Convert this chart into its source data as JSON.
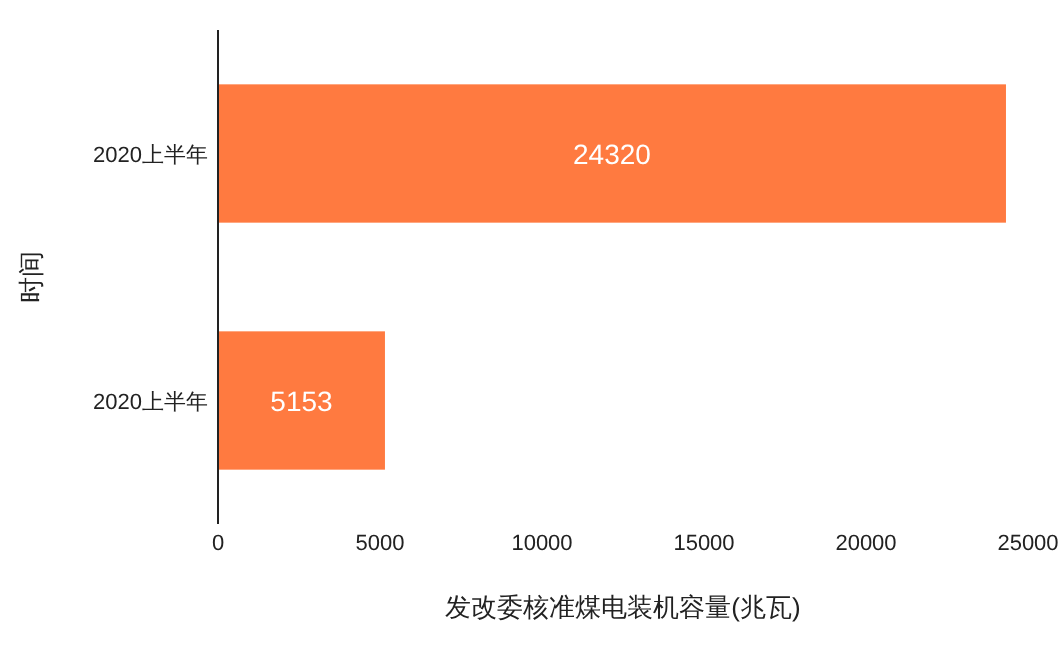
{
  "chart_data": {
    "type": "bar",
    "orientation": "horizontal",
    "categories": [
      "2020上半年",
      "2020上半年"
    ],
    "values": [
      24320,
      5153
    ],
    "color": "#ff7a40",
    "data_labels": true,
    "xlim": [
      0,
      25000
    ],
    "xticks": [
      0,
      5000,
      10000,
      15000,
      20000,
      25000
    ],
    "xlabel": "发改委核准煤电装机容量(兆瓦)",
    "ylabel": "时间"
  }
}
